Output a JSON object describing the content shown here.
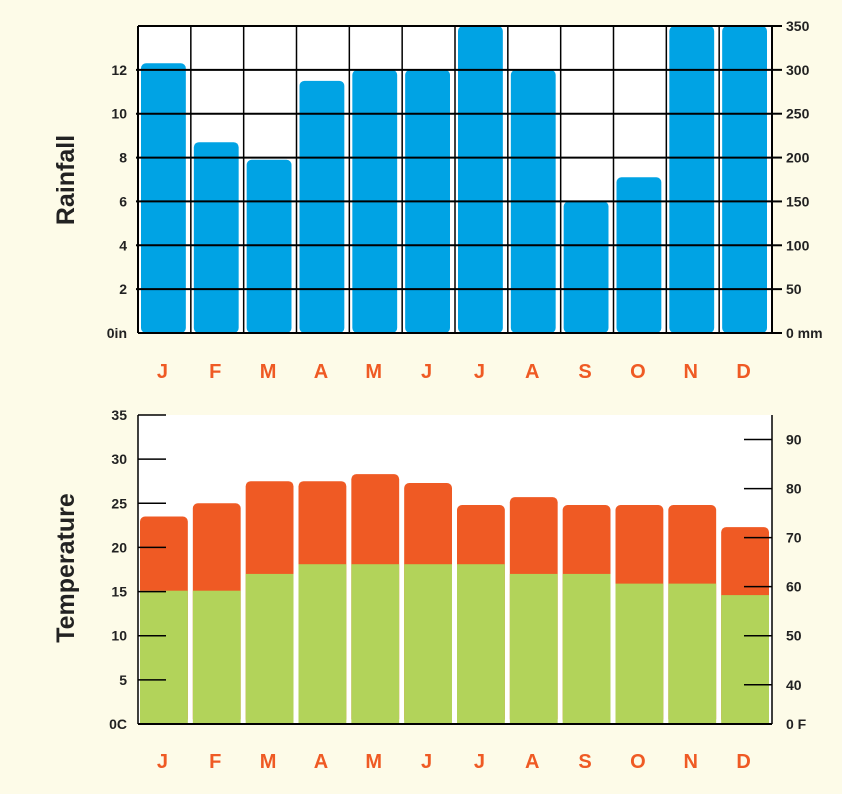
{
  "chart_data": [
    {
      "type": "bar",
      "ylabel": "Rainfall",
      "categories": [
        "J",
        "F",
        "M",
        "A",
        "M",
        "J",
        "J",
        "A",
        "S",
        "O",
        "N",
        "D"
      ],
      "series": [
        {
          "values": [
            12.3,
            8.7,
            7.9,
            11.5,
            12.0,
            12.0,
            14.0,
            12.0,
            6.0,
            7.1,
            14.0,
            14.0
          ]
        }
      ],
      "ylim": [
        0,
        14
      ],
      "y_ticks": [
        "0in",
        "2",
        "4",
        "6",
        "8",
        "10",
        "12"
      ],
      "right_ticks": [
        "0 mm",
        "50",
        "100",
        "150",
        "200",
        "250",
        "300",
        "350"
      ],
      "grid": true,
      "colors": {
        "bar": "#00a3e4",
        "month_label": "#ef5a24"
      }
    },
    {
      "type": "bar",
      "ylabel": "Temperature",
      "categories": [
        "J",
        "F",
        "M",
        "A",
        "M",
        "J",
        "J",
        "A",
        "S",
        "O",
        "N",
        "D"
      ],
      "series": [
        {
          "values": [
            15.1,
            15.1,
            17.0,
            18.1,
            18.1,
            18.1,
            18.1,
            17.0,
            17.0,
            15.9,
            15.9,
            14.6
          ]
        },
        {
          "values": [
            23.5,
            25.0,
            27.5,
            27.5,
            28.3,
            27.3,
            24.8,
            25.7,
            24.8,
            24.8,
            24.8,
            22.3
          ]
        }
      ],
      "ylim": [
        0,
        35
      ],
      "y_ticks": [
        "0C",
        "5",
        "10",
        "15",
        "20",
        "25",
        "30",
        "35"
      ],
      "right_ticks": [
        "0 F",
        "40",
        "50",
        "60",
        "70",
        "80",
        "90"
      ],
      "grid": false,
      "colors": {
        "min": "#b2d35a",
        "max": "#ef5a24",
        "month_label": "#ef5a24"
      }
    }
  ]
}
